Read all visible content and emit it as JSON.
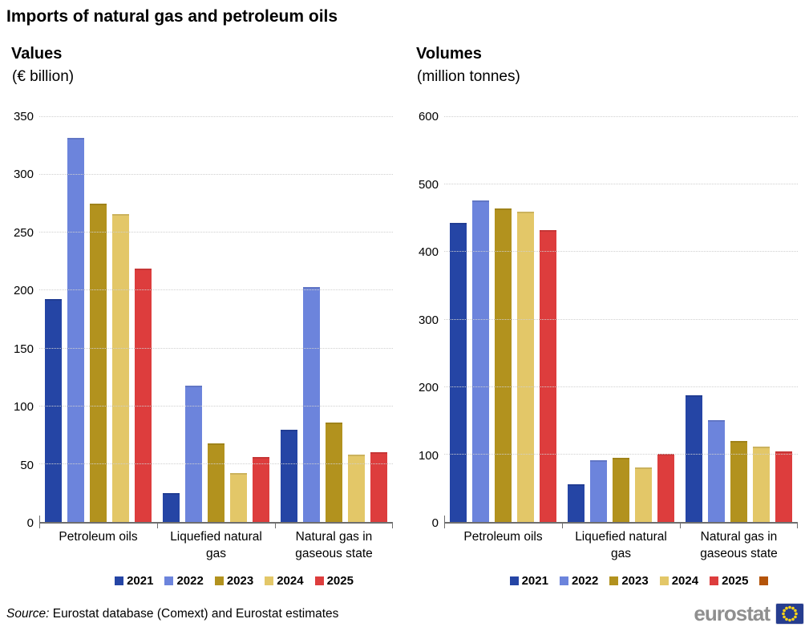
{
  "title": "Imports of natural gas and petroleum oils",
  "footer": {
    "source_label": "Source:",
    "source_text": " Eurostat database (Comext) and Eurostat estimates"
  },
  "logo": {
    "text": "eurostat",
    "flag_background": "#263D8F",
    "flag_stars": "#FFD617"
  },
  "style_colors": {
    "axis": "#6e6e6e",
    "gridline": "#cfcfcf",
    "logo_gray": "#8f8f8f"
  },
  "chart_data": [
    {
      "type": "bar",
      "title": "Values",
      "subtitle": "(€ billion)",
      "ylabel": "€ billion",
      "categories": [
        "Petroleum oils",
        "Liquefied natural\ngas",
        "Natural gas in\ngaseous state"
      ],
      "series": [
        {
          "name": "2021",
          "color": "#2545A5",
          "values": [
            193,
            25,
            80
          ]
        },
        {
          "name": "2022",
          "color": "#6C84DC",
          "values": [
            332,
            118,
            203
          ]
        },
        {
          "name": "2023",
          "color": "#B2921E",
          "values": [
            275,
            68,
            86
          ]
        },
        {
          "name": "2024",
          "color": "#E3C768",
          "values": [
            266,
            42,
            58
          ]
        },
        {
          "name": "2025",
          "color": "#DD3D3D",
          "values": [
            219,
            56,
            60
          ]
        }
      ],
      "ylim": [
        0,
        350
      ],
      "ytick_step": 50,
      "grid": true,
      "legend_position": "bottom"
    },
    {
      "type": "bar",
      "title": "Volumes",
      "subtitle": "(million tonnes)",
      "ylabel": "million tonnes",
      "categories": [
        "Petroleum oils",
        "Liquefied natural\ngas",
        "Natural gas in\ngaseous state"
      ],
      "series": [
        {
          "name": "2021",
          "color": "#2545A5",
          "values": [
            443,
            56,
            188
          ]
        },
        {
          "name": "2022",
          "color": "#6C84DC",
          "values": [
            477,
            91,
            151
          ]
        },
        {
          "name": "2023",
          "color": "#B2921E",
          "values": [
            465,
            95,
            120
          ]
        },
        {
          "name": "2024",
          "color": "#E3C768",
          "values": [
            460,
            81,
            112
          ]
        },
        {
          "name": "2025",
          "color": "#DD3D3D",
          "values": [
            432,
            101,
            105
          ]
        }
      ],
      "ylim": [
        0,
        600
      ],
      "ytick_step": 100,
      "grid": true,
      "legend_position": "bottom",
      "extra_legend_swatch": "#B4540A"
    }
  ]
}
